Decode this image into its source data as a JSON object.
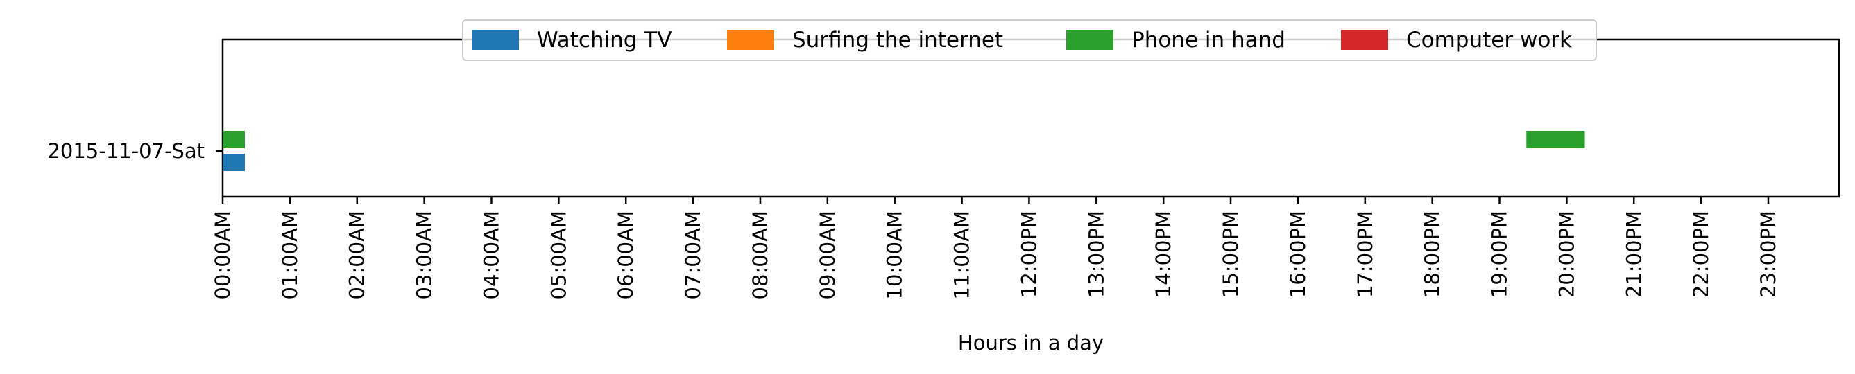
{
  "chart_data": {
    "type": "bar",
    "orientation": "horizontal",
    "title": "",
    "xlabel": "Hours in a day",
    "ylabel": "",
    "xlim": [
      0,
      24
    ],
    "x_ticks": [
      "00:00AM",
      "01:00AM",
      "02:00AM",
      "03:00AM",
      "04:00AM",
      "05:00AM",
      "06:00AM",
      "07:00AM",
      "08:00AM",
      "09:00AM",
      "10:00AM",
      "11:00AM",
      "12:00PM",
      "13:00PM",
      "14:00PM",
      "15:00PM",
      "16:00PM",
      "17:00PM",
      "18:00PM",
      "19:00PM",
      "20:00PM",
      "21:00PM",
      "22:00PM",
      "23:00PM"
    ],
    "categories": [
      "2015-11-07-Sat"
    ],
    "legend_position": "top-center",
    "grid": false,
    "series": [
      {
        "name": "Watching TV",
        "color": "#1f77b4",
        "lane": -1,
        "intervals": [
          {
            "category": "2015-11-07-Sat",
            "start": 0.0,
            "end": 0.33
          }
        ]
      },
      {
        "name": "Surfing the internet",
        "color": "#ff7f0e",
        "lane": 0,
        "intervals": []
      },
      {
        "name": "Phone in hand",
        "color": "#2ca02c",
        "lane": 1,
        "intervals": [
          {
            "category": "2015-11-07-Sat",
            "start": 0.0,
            "end": 0.33
          },
          {
            "category": "2015-11-07-Sat",
            "start": 19.4,
            "end": 20.27
          }
        ]
      },
      {
        "name": "Computer work",
        "color": "#d62728",
        "lane": 0,
        "intervals": []
      }
    ]
  }
}
